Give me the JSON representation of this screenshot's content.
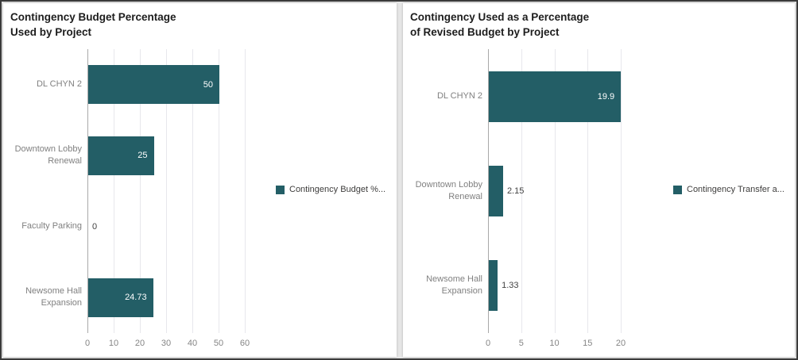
{
  "bar_color": "#235e66",
  "chart_data": [
    {
      "type": "bar",
      "orientation": "horizontal",
      "title": "Contingency Budget Percentage Used by Project",
      "title_lines": [
        "Contingency Budget Percentage",
        "Used by Project"
      ],
      "legend": {
        "label": "Contingency Budget %...",
        "color": "#235e66",
        "position": "right"
      },
      "categories": [
        "DL CHYN 2",
        "Downtown Lobby Renewal",
        "Faculty Parking",
        "Newsome Hall Expansion"
      ],
      "values": [
        50,
        25,
        0,
        24.73
      ],
      "value_labels": [
        "50",
        "25",
        "0",
        "24.73"
      ],
      "x_ticks": [
        0,
        10,
        20,
        30,
        40,
        50,
        60
      ],
      "xlim": [
        0,
        60
      ],
      "grid": true
    },
    {
      "type": "bar",
      "orientation": "horizontal",
      "title": "Contingency Used as a Percentage of Revised Budget by Project",
      "title_lines": [
        "Contingency Used as a Percentage",
        "of Revised Budget by Project"
      ],
      "legend": {
        "label": "Contingency Transfer a...",
        "color": "#235e66",
        "position": "right"
      },
      "categories": [
        "DL CHYN 2",
        "Downtown Lobby Renewal",
        "Newsome Hall Expansion"
      ],
      "values": [
        19.9,
        2.15,
        1.33
      ],
      "value_labels": [
        "19.9",
        "2.15",
        "1.33"
      ],
      "x_ticks": [
        0,
        5,
        10,
        15,
        20
      ],
      "xlim": [
        0,
        20
      ],
      "grid": true
    }
  ]
}
